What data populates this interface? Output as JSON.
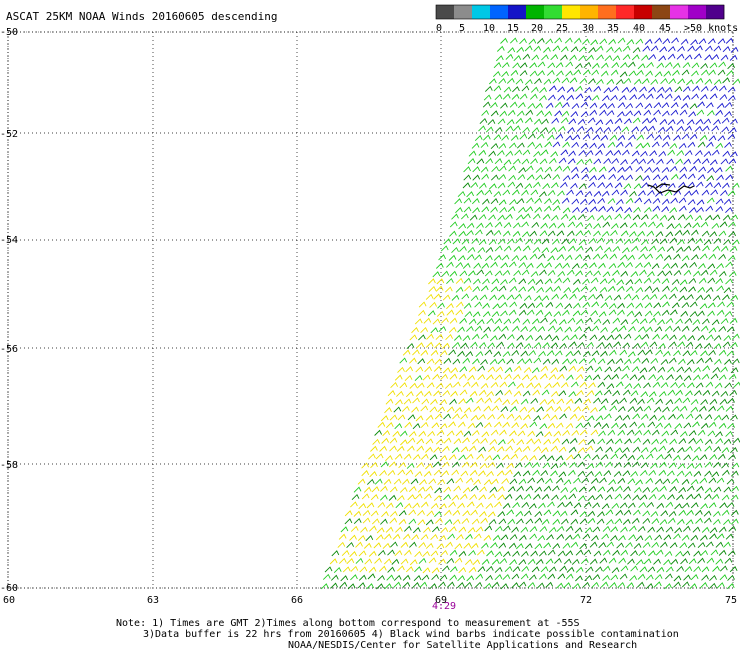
{
  "title": "ASCAT 25KM NOAA Winds 20160605 descending",
  "colorbar": {
    "colors": [
      "#4a4a4a",
      "#8c8c8c",
      "#00c8e6",
      "#0064ff",
      "#1414c8",
      "#00b400",
      "#32dc32",
      "#ffe600",
      "#ffb400",
      "#ff6e1e",
      "#ff2828",
      "#c80000",
      "#8c4614",
      "#e632e6",
      "#a000c8",
      "#50008c"
    ],
    "labels": [
      "0",
      "5",
      "10",
      "15",
      "20",
      "25",
      "30",
      "35",
      "40",
      "45",
      ">50 knots"
    ]
  },
  "axes": {
    "lat_labels": [
      "-50",
      "-52",
      "-54",
      "-56",
      "-58",
      "-60"
    ],
    "lon_labels": [
      "60",
      "63",
      "66",
      "69",
      "72",
      "75"
    ]
  },
  "time_label": "4:29",
  "notes": [
    "Note: 1) Times are GMT 2)Times along bottom correspond to measurement at -55S",
    "3)Data buffer is 22 hrs from 20160605 4) Black wind barbs indicate possible contamination",
    "NOAA/NESDIS/Center for Satellite Applications and Research"
  ],
  "wind_colors": {
    "blue": "#1a1ad0",
    "green_light": "#22cc22",
    "green_dark": "#0a8a0a",
    "yellow": "#f0e000",
    "black": "#000000"
  }
}
